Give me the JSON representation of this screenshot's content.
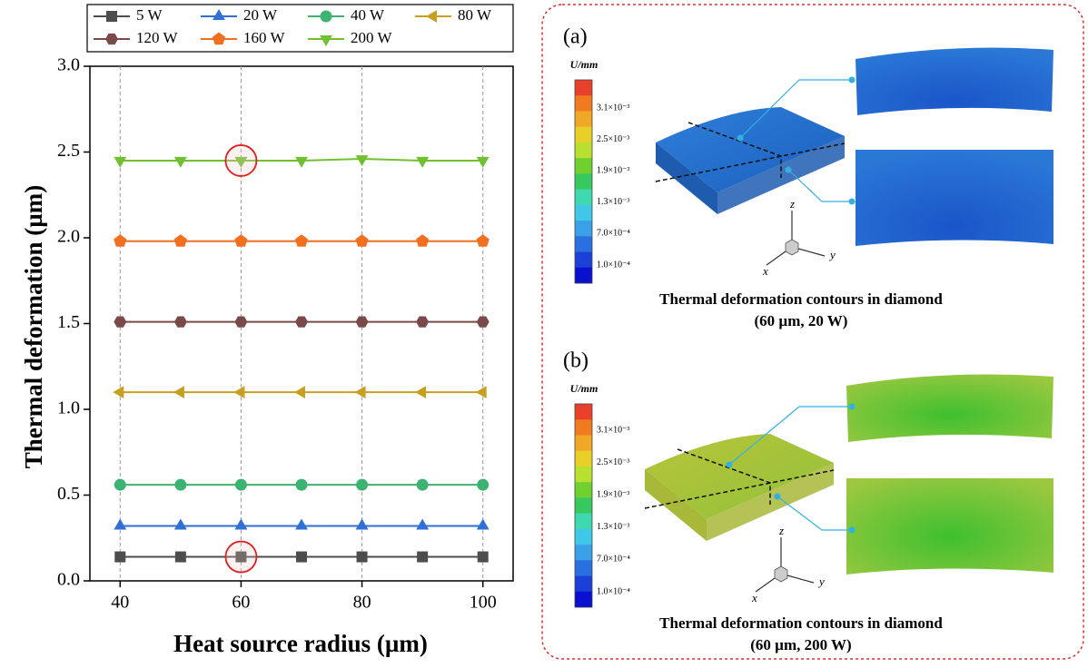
{
  "chart_data": {
    "type": "line",
    "x_label": "Heat source radius (µm)",
    "y_label": "Thermal deformation (µm)",
    "x": [
      40,
      50,
      60,
      70,
      80,
      90,
      100
    ],
    "xlim": [
      35,
      105
    ],
    "xticks": [
      40,
      60,
      80,
      100
    ],
    "ylim": [
      0,
      3
    ],
    "yticks": [
      {
        "value": 0,
        "label": "0.0"
      },
      {
        "value": 0.5,
        "label": "0.5"
      },
      {
        "value": 1,
        "label": "1.0"
      },
      {
        "value": 1.5,
        "label": "1.5"
      },
      {
        "value": 2,
        "label": "2.0"
      },
      {
        "value": 2.5,
        "label": "2.5"
      },
      {
        "value": 3,
        "label": "3.0"
      }
    ],
    "grid": "x",
    "series": [
      {
        "name": "5 W",
        "color": "#4d4d4d",
        "marker": "square",
        "values": [
          0.14,
          0.14,
          0.14,
          0.14,
          0.14,
          0.14,
          0.14
        ]
      },
      {
        "name": "20 W",
        "color": "#2f6fd6",
        "marker": "triangle-up",
        "values": [
          0.32,
          0.32,
          0.32,
          0.32,
          0.32,
          0.32,
          0.32
        ]
      },
      {
        "name": "40 W",
        "color": "#3cb371",
        "marker": "circle",
        "values": [
          0.56,
          0.56,
          0.56,
          0.56,
          0.56,
          0.56,
          0.56
        ]
      },
      {
        "name": "80 W",
        "color": "#c8a020",
        "marker": "triangle-left",
        "values": [
          1.1,
          1.1,
          1.1,
          1.1,
          1.1,
          1.1,
          1.1
        ]
      },
      {
        "name": "120 W",
        "color": "#7a4a4a",
        "marker": "hexagon",
        "values": [
          1.51,
          1.51,
          1.51,
          1.51,
          1.51,
          1.51,
          1.51
        ]
      },
      {
        "name": "160 W",
        "color": "#f07020",
        "marker": "pentagon",
        "values": [
          1.98,
          1.98,
          1.98,
          1.98,
          1.98,
          1.98,
          1.98
        ]
      },
      {
        "name": "200 W",
        "color": "#70c030",
        "marker": "triangle-down",
        "values": [
          2.45,
          2.45,
          2.45,
          2.45,
          2.46,
          2.45,
          2.45
        ]
      }
    ]
  },
  "panels": [
    {
      "label": "(a)",
      "colorbar_title": "U/mm",
      "colorbar_labels": [
        "3.1×10⁻³",
        "2.5×10⁻³",
        "1.9×10⁻³",
        "1.3×10⁻³",
        "7.0×10⁻⁴",
        "1.0×10⁻⁴"
      ],
      "axis_labels": [
        "z",
        "x",
        "y"
      ],
      "caption": [
        "Thermal deformation contours in diamond",
        "(60 µm, 20 W)"
      ]
    },
    {
      "label": "(b)",
      "colorbar_title": "U/mm",
      "colorbar_labels": [
        "3.1×10⁻³",
        "2.5×10⁻³",
        "1.9×10⁻³",
        "1.3×10⁻³",
        "7.0×10⁻⁴",
        "1.0×10⁻⁴"
      ],
      "axis_labels": [
        "z",
        "x",
        "y"
      ],
      "caption": [
        "Thermal deformation contours in diamond",
        "(60 µm, 200 W)"
      ]
    }
  ]
}
